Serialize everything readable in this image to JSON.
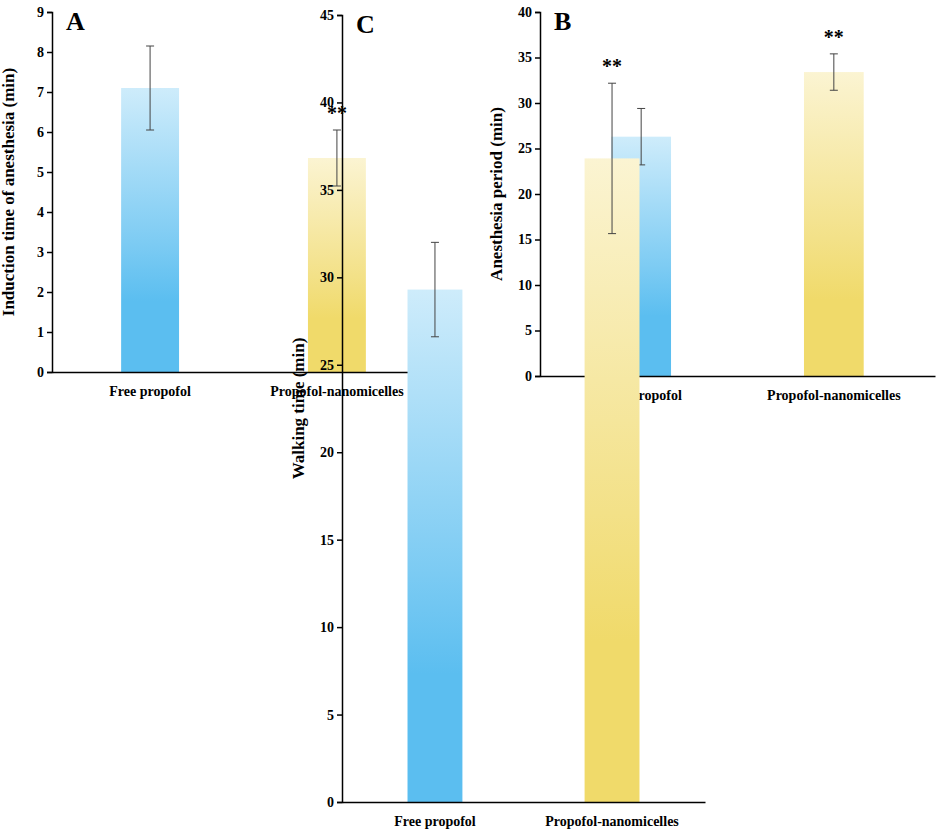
{
  "chart_data": [
    {
      "type": "bar",
      "title": "A",
      "y_label": "Induction time of anesthesia (min)",
      "categories": [
        "Free propofol",
        "Propofol-nanomicelles"
      ],
      "values": [
        7.1,
        5.35
      ],
      "errors": [
        1.05,
        0.7
      ],
      "value_annotations": [
        null,
        "**"
      ],
      "colors": [
        "#5bbef0",
        "#f0da6a"
      ],
      "ylim": [
        0,
        9
      ],
      "yticks": [
        0,
        1,
        2,
        3,
        4,
        5,
        6,
        7,
        8,
        9
      ],
      "grid": false
    },
    {
      "type": "bar",
      "title": "B",
      "y_label": "Anesthesia period (min)",
      "categories": [
        "Free propofol",
        "Propofol-nanomicelles"
      ],
      "values": [
        26.3,
        33.4
      ],
      "errors": [
        3.1,
        2.0
      ],
      "value_annotations": [
        null,
        "**"
      ],
      "colors": [
        "#5bbef0",
        "#f0da6a"
      ],
      "ylim": [
        0,
        40
      ],
      "yticks": [
        0,
        5,
        10,
        15,
        20,
        25,
        30,
        35,
        40
      ],
      "grid": false
    },
    {
      "type": "bar",
      "title": "C",
      "y_label": "Walking time (min)",
      "categories": [
        "Free propofol",
        "Propofol-nanomicelles"
      ],
      "values": [
        29.3,
        36.8
      ],
      "errors": [
        2.7,
        4.3
      ],
      "value_annotations": [
        null,
        "**"
      ],
      "colors": [
        "#5bbef0",
        "#f0da6a"
      ],
      "ylim": [
        0,
        45
      ],
      "yticks": [
        0,
        5,
        10,
        15,
        20,
        25,
        30,
        35,
        40,
        45
      ],
      "grid": false
    }
  ]
}
